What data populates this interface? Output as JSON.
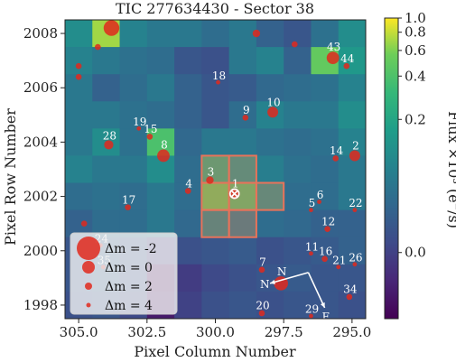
{
  "chart_data": {
    "type": "heatmap",
    "title": "TIC 277634430 - Sector 38",
    "xlabel": "Pixel Column Number",
    "ylabel": "Pixel Row Number",
    "xlim": [
      305.5,
      294.5
    ],
    "ylim": [
      1997.5,
      2008.5
    ],
    "xticks": [
      "305.0",
      "302.5",
      "300.0",
      "297.5",
      "295.0"
    ],
    "xtick_values": [
      305.0,
      302.5,
      300.0,
      297.5,
      295.0
    ],
    "yticks": [
      "1998",
      "2000",
      "2002",
      "2004",
      "2006",
      "2008"
    ],
    "ytick_values": [
      1998,
      2000,
      2002,
      2004,
      2006,
      2008
    ],
    "colorbar": {
      "label": "Flux ×10³ (e⁻/s)",
      "ticks": [
        "1.0",
        "0.8",
        "0.6",
        "0.4",
        "0.2",
        "0.0"
      ],
      "tick_values": [
        1.0,
        0.8,
        0.6,
        0.4,
        0.2,
        0.0
      ],
      "colormap": "viridis"
    },
    "columns": [
      305,
      304,
      303,
      302,
      301,
      300,
      299,
      298,
      297,
      296,
      295
    ],
    "rows": [
      2008,
      2007,
      2006,
      2005,
      2004,
      2003,
      2002,
      2001,
      2000,
      1999,
      1998
    ],
    "pixel_values": [
      [
        0.55,
        0.92,
        0.5,
        0.45,
        0.45,
        0.4,
        0.45,
        0.35,
        0.3,
        0.42,
        0.55
      ],
      [
        0.5,
        0.45,
        0.42,
        0.4,
        0.3,
        0.28,
        0.45,
        0.5,
        0.35,
        0.85,
        0.6
      ],
      [
        0.45,
        0.35,
        0.4,
        0.45,
        0.35,
        0.3,
        0.32,
        0.38,
        0.4,
        0.42,
        0.5
      ],
      [
        0.45,
        0.45,
        0.42,
        0.4,
        0.35,
        0.3,
        0.4,
        0.5,
        0.45,
        0.45,
        0.55
      ],
      [
        0.45,
        0.55,
        0.42,
        0.8,
        0.38,
        0.45,
        0.45,
        0.42,
        0.4,
        0.42,
        0.5
      ],
      [
        0.5,
        0.45,
        0.45,
        0.55,
        0.4,
        0.7,
        0.6,
        0.48,
        0.42,
        0.4,
        0.45
      ],
      [
        0.4,
        0.42,
        0.4,
        0.45,
        0.4,
        0.85,
        0.8,
        0.58,
        0.4,
        0.4,
        0.45
      ],
      [
        0.35,
        0.4,
        0.4,
        0.45,
        0.38,
        0.55,
        0.48,
        0.4,
        0.38,
        0.35,
        0.35
      ],
      [
        0.3,
        0.35,
        0.3,
        0.2,
        0.28,
        0.3,
        0.32,
        0.28,
        0.3,
        0.32,
        0.35
      ],
      [
        0.3,
        0.35,
        0.28,
        0.05,
        0.2,
        0.25,
        0.28,
        0.3,
        0.32,
        0.3,
        0.3
      ],
      [
        0.28,
        0.3,
        0.25,
        0.08,
        0.22,
        0.28,
        0.3,
        0.28,
        0.3,
        0.3,
        0.28
      ]
    ],
    "aperture_pixels": [
      [
        300,
        2003
      ],
      [
        299,
        2003
      ],
      [
        300,
        2002
      ],
      [
        299,
        2002
      ],
      [
        298,
        2002
      ],
      [
        300,
        2001
      ],
      [
        299,
        2001
      ]
    ],
    "target_marker": [
      299.3,
      2002.1
    ],
    "stars": [
      {
        "label": "",
        "col": 303.8,
        "row": 2008.2,
        "size": 8
      },
      {
        "label": "",
        "col": 304.3,
        "row": 2007.5,
        "size": 2
      },
      {
        "label": "",
        "col": 305.0,
        "row": 2006.8,
        "size": 2
      },
      {
        "label": "",
        "col": 305.0,
        "row": 2006.4,
        "size": 2
      },
      {
        "label": "",
        "col": 298.5,
        "row": 2008.0,
        "size": 3
      },
      {
        "label": "",
        "col": 297.1,
        "row": 2007.6,
        "size": 2
      },
      {
        "label": "43",
        "col": 295.7,
        "row": 2007.1,
        "size": 6
      },
      {
        "label": "44",
        "col": 295.2,
        "row": 2006.8,
        "size": 2
      },
      {
        "label": "18",
        "col": 299.9,
        "row": 2006.2,
        "size": 1
      },
      {
        "label": "9",
        "col": 298.9,
        "row": 2004.9,
        "size": 2
      },
      {
        "label": "10",
        "col": 297.9,
        "row": 2005.1,
        "size": 5
      },
      {
        "label": "19",
        "col": 302.8,
        "row": 2004.5,
        "size": 1
      },
      {
        "label": "15",
        "col": 302.4,
        "row": 2004.2,
        "size": 2
      },
      {
        "label": "28",
        "col": 303.9,
        "row": 2003.9,
        "size": 4
      },
      {
        "label": "8",
        "col": 301.9,
        "row": 2003.5,
        "size": 6
      },
      {
        "label": "14",
        "col": 295.6,
        "row": 2003.4,
        "size": 2
      },
      {
        "label": "2",
        "col": 294.9,
        "row": 2003.5,
        "size": 5
      },
      {
        "label": "3",
        "col": 300.2,
        "row": 2002.6,
        "size": 3
      },
      {
        "label": "4",
        "col": 301.0,
        "row": 2002.2,
        "size": 2
      },
      {
        "label": "1",
        "col": 299.3,
        "row": 2002.1,
        "size": 5
      },
      {
        "label": "17",
        "col": 303.2,
        "row": 2001.6,
        "size": 2
      },
      {
        "label": "5",
        "col": 296.5,
        "row": 2001.5,
        "size": 1
      },
      {
        "label": "6",
        "col": 296.2,
        "row": 2001.8,
        "size": 1
      },
      {
        "label": "22",
        "col": 294.9,
        "row": 2001.5,
        "size": 1
      },
      {
        "label": "12",
        "col": 295.9,
        "row": 2000.8,
        "size": 2
      },
      {
        "label": "",
        "col": 304.8,
        "row": 2001.0,
        "size": 2
      },
      {
        "label": "24",
        "col": 304.2,
        "row": 2000.2,
        "size": 1
      },
      {
        "label": "11",
        "col": 296.5,
        "row": 1999.9,
        "size": 1
      },
      {
        "label": "16",
        "col": 296.0,
        "row": 1999.7,
        "size": 2
      },
      {
        "label": "21",
        "col": 295.5,
        "row": 1999.4,
        "size": 1
      },
      {
        "label": "26",
        "col": 294.9,
        "row": 1999.5,
        "size": 1
      },
      {
        "label": "7",
        "col": 298.3,
        "row": 1999.3,
        "size": 2
      },
      {
        "label": "N",
        "col": 297.6,
        "row": 1998.8,
        "size": 7
      },
      {
        "label": "34",
        "col": 295.1,
        "row": 1998.3,
        "size": 2
      },
      {
        "label": "20",
        "col": 298.3,
        "row": 1997.7,
        "size": 2
      },
      {
        "label": "29",
        "col": 296.5,
        "row": 1997.6,
        "size": 1
      },
      {
        "label": "35",
        "col": 304.1,
        "row": 1999.4,
        "size": 1
      }
    ],
    "compass": {
      "north": "N",
      "east": "E"
    },
    "legend": {
      "placement": "bottom-left",
      "entries": [
        "Δm = -2",
        "Δm = 0",
        "Δm = 2",
        "Δm = 4"
      ]
    }
  },
  "colors": {
    "aperture": "#e8735a",
    "star": "#e0291d",
    "legend_bg": "#f4f4f4"
  }
}
